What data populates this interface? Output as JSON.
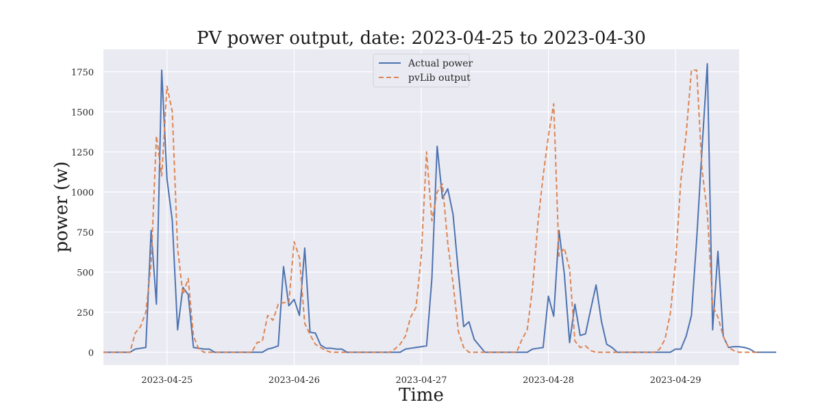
{
  "chart_data": {
    "type": "line",
    "title": "PV power output, date: 2023-04-25 to 2023-04-30",
    "xlabel": "Time",
    "ylabel": "power (w)",
    "x_start": "2023-04-24 12:00",
    "x_step_hours": 1,
    "xlim": [
      "2023-04-24 12:00",
      "2023-04-29 12:00"
    ],
    "ylim": [
      -80,
      1890
    ],
    "x_ticks": [
      "2023-04-25",
      "2023-04-26",
      "2023-04-27",
      "2023-04-28",
      "2023-04-29"
    ],
    "y_ticks": [
      0,
      250,
      500,
      750,
      1000,
      1250,
      1500,
      1750
    ],
    "grid": true,
    "legend_position": "top-center",
    "colors": {
      "background": "#eaeaf2",
      "grid": "#ffffff",
      "actual": "#4c72b0",
      "pvlib": "#dd8452"
    },
    "series": [
      {
        "name": "Actual power",
        "style": "solid",
        "values": [
          0,
          0,
          0,
          0,
          0,
          0,
          20,
          25,
          30,
          760,
          300,
          1760,
          1080,
          820,
          140,
          405,
          360,
          30,
          25,
          20,
          20,
          0,
          0,
          0,
          0,
          0,
          0,
          0,
          0,
          0,
          0,
          20,
          28,
          40,
          535,
          290,
          330,
          230,
          650,
          125,
          120,
          45,
          25,
          25,
          20,
          20,
          0,
          0,
          0,
          0,
          0,
          0,
          0,
          0,
          0,
          0,
          0,
          20,
          25,
          30,
          35,
          40,
          460,
          1285,
          960,
          1020,
          860,
          500,
          160,
          190,
          80,
          40,
          0,
          0,
          0,
          0,
          0,
          0,
          0,
          0,
          0,
          20,
          25,
          30,
          350,
          225,
          760,
          490,
          60,
          300,
          105,
          115,
          270,
          420,
          195,
          50,
          30,
          0,
          0,
          0,
          0,
          0,
          0,
          0,
          0,
          0,
          0,
          0,
          20,
          20,
          100,
          230,
          710,
          1270,
          1800,
          140,
          630,
          100,
          30,
          35,
          35,
          30,
          20,
          0,
          0,
          0,
          0,
          0
        ]
      },
      {
        "name": "pvLib output",
        "style": "dashed",
        "values": [
          0,
          0,
          0,
          0,
          0,
          0,
          120,
          160,
          250,
          550,
          1350,
          1100,
          1660,
          1500,
          650,
          360,
          460,
          100,
          20,
          0,
          0,
          0,
          0,
          0,
          0,
          0,
          0,
          0,
          0,
          60,
          70,
          230,
          200,
          300,
          310,
          310,
          690,
          590,
          180,
          110,
          50,
          30,
          10,
          0,
          0,
          0,
          0,
          0,
          0,
          0,
          0,
          0,
          0,
          0,
          0,
          20,
          50,
          100,
          220,
          280,
          600,
          1250,
          820,
          1000,
          1050,
          680,
          430,
          130,
          30,
          0,
          0,
          0,
          0,
          0,
          0,
          0,
          0,
          0,
          0,
          80,
          140,
          400,
          800,
          1100,
          1350,
          1550,
          600,
          650,
          520,
          70,
          30,
          40,
          10,
          0,
          0,
          0,
          0,
          0,
          0,
          0,
          0,
          0,
          0,
          0,
          0,
          20,
          80,
          240,
          560,
          1070,
          1360,
          1760,
          1760,
          1140,
          870,
          290,
          220,
          100,
          30,
          10,
          0,
          0,
          0,
          0,
          0
        ]
      }
    ]
  }
}
